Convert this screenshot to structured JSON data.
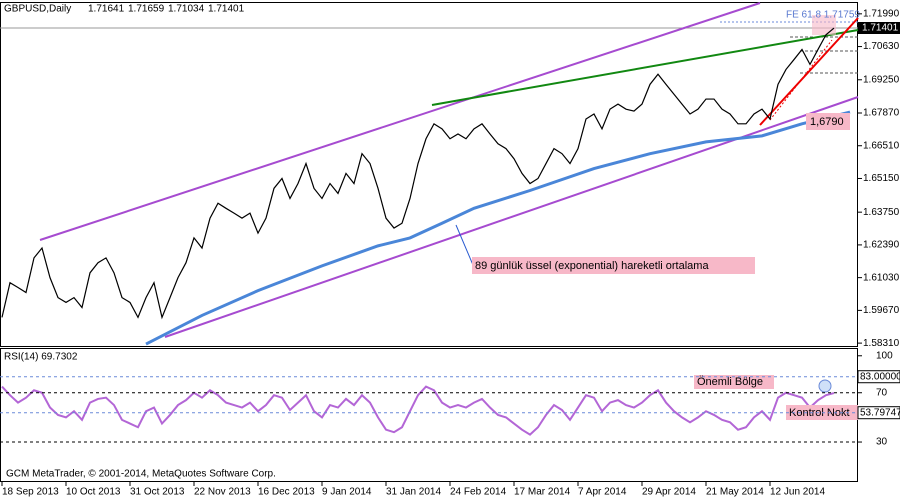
{
  "chart_data": {
    "type": "line",
    "symbol": "GBPUSD,Daily",
    "ohlc": [
      1.71641,
      1.71659,
      1.71034,
      1.71401
    ],
    "xlim": [
      0,
      214
    ],
    "xticks": [
      {
        "value": 0,
        "label": "18 Sep 2013"
      },
      {
        "value": 16,
        "label": "10 Oct 2013"
      },
      {
        "value": 32,
        "label": "31 Oct 2013"
      },
      {
        "value": 48,
        "label": "22 Nov 2013"
      },
      {
        "value": 64,
        "label": "16 Dec 2013"
      },
      {
        "value": 80,
        "label": "9 Jan 2014"
      },
      {
        "value": 96,
        "label": "31 Jan 2014"
      },
      {
        "value": 112,
        "label": "24 Feb 2014"
      },
      {
        "value": 128,
        "label": "17 Mar 2014"
      },
      {
        "value": 144,
        "label": "7 Apr 2014"
      },
      {
        "value": 160,
        "label": "29 Apr 2014"
      },
      {
        "value": 176,
        "label": "21 May 2014"
      },
      {
        "value": 192,
        "label": "12 Jun 2014"
      }
    ],
    "ylim": [
      1.5819,
      1.7244
    ],
    "yticks": [
      {
        "value": 1.7199,
        "label": "1.71990"
      },
      {
        "value": 1.7063,
        "label": "1.70630"
      },
      {
        "value": 1.6925,
        "label": "1.69250"
      },
      {
        "value": 1.6787,
        "label": "1.67870"
      },
      {
        "value": 1.6651,
        "label": "1.66510"
      },
      {
        "value": 1.6515,
        "label": "1.65150"
      },
      {
        "value": 1.6375,
        "label": "1.63750"
      },
      {
        "value": 1.6239,
        "label": "1.62390"
      },
      {
        "value": 1.6103,
        "label": "1.61030"
      },
      {
        "value": 1.5967,
        "label": "1.59670"
      },
      {
        "value": 1.5831,
        "label": "1.58310"
      }
    ],
    "x": [
      0,
      2,
      4,
      6,
      8,
      10,
      12,
      14,
      16,
      18,
      20,
      22,
      24,
      26,
      28,
      30,
      32,
      34,
      36,
      38,
      40,
      42,
      44,
      46,
      48,
      50,
      52,
      54,
      56,
      58,
      60,
      62,
      64,
      66,
      68,
      70,
      72,
      74,
      76,
      78,
      80,
      82,
      84,
      86,
      88,
      90,
      92,
      94,
      96,
      98,
      100,
      102,
      104,
      106,
      108,
      110,
      112,
      114,
      116,
      118,
      120,
      122,
      124,
      126,
      128,
      130,
      132,
      134,
      136,
      138,
      140,
      142,
      144,
      146,
      148,
      150,
      152,
      154,
      156,
      158,
      160,
      162,
      164,
      166,
      168,
      170,
      172,
      174,
      176,
      178,
      180,
      182,
      184,
      186,
      188,
      190,
      192,
      194,
      196,
      198,
      200,
      202,
      204,
      206,
      208
    ],
    "series": [
      {
        "name": "GBPUSD",
        "color": "#000000",
        "values": [
          1.5938,
          1.6082,
          1.6062,
          1.6041,
          1.6185,
          1.6226,
          1.6103,
          1.602,
          1.6,
          1.602,
          1.5979,
          1.6123,
          1.6165,
          1.6185,
          1.6123,
          1.602,
          1.6,
          1.5938,
          1.602,
          1.6082,
          1.5938,
          1.602,
          1.6103,
          1.6165,
          1.6268,
          1.6226,
          1.635,
          1.6412,
          1.6391,
          1.6371,
          1.635,
          1.6371,
          1.6288,
          1.635,
          1.6474,
          1.6515,
          1.6432,
          1.6494,
          1.6577,
          1.6474,
          1.6432,
          1.6494,
          1.6453,
          1.6536,
          1.6494,
          1.6618,
          1.6577,
          1.6474,
          1.635,
          1.6309,
          1.6329,
          1.6432,
          1.6577,
          1.668,
          1.6742,
          1.6721,
          1.668,
          1.67,
          1.668,
          1.6721,
          1.6742,
          1.67,
          1.6659,
          1.6639,
          1.6597,
          1.6536,
          1.6494,
          1.6515,
          1.6577,
          1.6639,
          1.6618,
          1.6577,
          1.6639,
          1.6762,
          1.6783,
          1.6721,
          1.6803,
          1.6824,
          1.6803,
          1.6795,
          1.6824,
          1.6906,
          1.6948,
          1.6906,
          1.6865,
          1.6824,
          1.6783,
          1.6803,
          1.6845,
          1.6845,
          1.6803,
          1.6783,
          1.6742,
          1.6742,
          1.6783,
          1.6803,
          1.6762,
          1.6906,
          1.6968,
          1.7009,
          1.7051,
          1.6989,
          1.7051,
          1.7112,
          1.714
        ]
      }
    ],
    "ema": {
      "name": "EMA 89",
      "color": "#4a86d8",
      "x": [
        36,
        50,
        64,
        80,
        94,
        102,
        110,
        118,
        132,
        148,
        162,
        176,
        190,
        200,
        212
      ],
      "values": [
        1.5827,
        1.5946,
        1.6049,
        1.6152,
        1.6235,
        1.6268,
        1.6329,
        1.6391,
        1.6465,
        1.6556,
        1.6618,
        1.6667,
        1.6692,
        1.6742,
        1.6791
      ]
    },
    "annotations": {
      "fe": "FE 61.8 1.71759",
      "level": "1,6790",
      "ema_note": "89 günlük üssel (exponential) hareketli ortalama"
    },
    "rsi": {
      "title": "RSI(14) 69.7302",
      "color": "#b366d6",
      "ylim": [
        0,
        105.5
      ],
      "yticks": [
        100,
        70,
        30
      ],
      "levels": [
        {
          "value": 83,
          "label": "83.00000"
        },
        53.79747
      ],
      "values": [
        75,
        68,
        62,
        66,
        72,
        70,
        58,
        52,
        50,
        55,
        48,
        62,
        65,
        66,
        60,
        48,
        45,
        42,
        55,
        58,
        45,
        52,
        60,
        64,
        70,
        66,
        72,
        68,
        62,
        60,
        58,
        62,
        55,
        60,
        68,
        66,
        56,
        62,
        68,
        55,
        50,
        60,
        58,
        65,
        60,
        68,
        62,
        50,
        40,
        38,
        42,
        55,
        68,
        75,
        72,
        62,
        58,
        60,
        58,
        62,
        65,
        58,
        52,
        50,
        45,
        40,
        36,
        42,
        52,
        60,
        56,
        48,
        58,
        68,
        66,
        55,
        62,
        64,
        60,
        58,
        62,
        68,
        72,
        62,
        55,
        50,
        46,
        50,
        55,
        52,
        48,
        46,
        40,
        42,
        50,
        55,
        48,
        66,
        70,
        68,
        66,
        58,
        64,
        68,
        69.7302
      ],
      "annotations": {
        "zone": "Önemli Bölge",
        "checkpoint": "Kontrol Nokt"
      }
    },
    "copyright": "GCM MetaTrader, © 2001-2014, MetaQuotes Software Corp."
  }
}
